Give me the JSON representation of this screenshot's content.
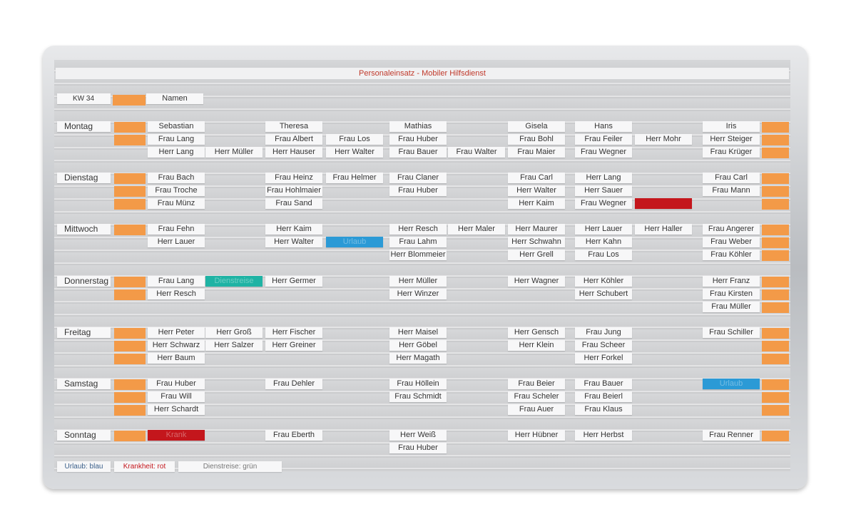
{
  "header": {
    "title": "Personaleinsatz - Mobiler Hilfsdienst",
    "week": "KW 34",
    "names_label": "Namen"
  },
  "days": [
    {
      "name": "Montag",
      "rows": [
        {
          "cells": [
            "Sebastian",
            null,
            "Theresa",
            null,
            "Mathias",
            null,
            "Gisela",
            "Hans",
            null,
            "Iris"
          ],
          "tab_left": true,
          "tab_right": true
        },
        {
          "cells": [
            "Frau Lang",
            null,
            "Frau Albert",
            "Frau Los",
            "Frau Huber",
            null,
            "Frau Bohl",
            "Frau Feiler",
            "Herr Mohr",
            "Herr Steiger"
          ],
          "tab_left": true,
          "tab_right": true
        },
        {
          "cells": [
            "Herr Lang",
            "Herr Müller",
            "Herr Hauser",
            "Herr Walter",
            "Frau Bauer",
            "Frau Walter",
            "Frau Maier",
            "Frau Wegner",
            null,
            "Frau Krüger"
          ],
          "tab_left": false,
          "tab_right": true
        }
      ]
    },
    {
      "name": "Dienstag",
      "rows": [
        {
          "cells": [
            "Frau Bach",
            null,
            "Frau Heinz",
            "Frau Helmer",
            "Frau Claner",
            null,
            "Frau Carl",
            "Herr Lang",
            null,
            "Frau Carl"
          ],
          "tab_left": true,
          "tab_right": true
        },
        {
          "cells": [
            "Frau Troche",
            null,
            "Frau Hohlmaier",
            null,
            "Frau Huber",
            null,
            "Herr Walter",
            "Herr Sauer",
            null,
            "Frau Mann"
          ],
          "tab_left": true,
          "tab_right": true
        },
        {
          "cells": [
            "Frau Münz",
            null,
            "Frau Sand",
            null,
            null,
            null,
            "Herr Kaim",
            "Frau Wegner",
            {
              "color": "#c4161c"
            },
            null
          ],
          "tab_left": true,
          "tab_right": true
        }
      ]
    },
    {
      "name": "Mittwoch",
      "rows": [
        {
          "cells": [
            "Frau Fehn",
            null,
            "Herr Kaim",
            null,
            "Herr Resch",
            "Herr Maler",
            "Herr Maurer",
            "Herr Lauer",
            "Herr Haller",
            "Frau Angerer"
          ],
          "tab_left": true,
          "tab_right": true
        },
        {
          "cells": [
            "Herr Lauer",
            null,
            "Herr Walter",
            {
              "text": "Urlaub",
              "color": "#2b9ad6"
            },
            "Frau Lahm",
            null,
            "Herr Schwahn",
            "Herr Kahn",
            null,
            "Frau Weber"
          ],
          "tab_left": false,
          "tab_right": true
        },
        {
          "cells": [
            null,
            null,
            null,
            null,
            "Herr Blommeier",
            null,
            "Herr Grell",
            "Frau Los",
            null,
            "Frau Köhler"
          ],
          "tab_left": false,
          "tab_right": true
        }
      ]
    },
    {
      "name": "Donnerstag",
      "rows": [
        {
          "cells": [
            "Frau Lang",
            {
              "text": "Dienstreise",
              "color": "#1fb3a4"
            },
            "Herr Germer",
            null,
            "Herr Müller",
            null,
            "Herr Wagner",
            "Herr Köhler",
            null,
            "Herr Franz"
          ],
          "tab_left": true,
          "tab_right": true
        },
        {
          "cells": [
            "Herr Resch",
            null,
            null,
            null,
            "Herr Winzer",
            null,
            null,
            "Herr Schubert",
            null,
            "Frau Kirsten"
          ],
          "tab_left": true,
          "tab_right": true
        },
        {
          "cells": [
            null,
            null,
            null,
            null,
            null,
            null,
            null,
            null,
            null,
            "Frau Müller"
          ],
          "tab_left": false,
          "tab_right": true
        }
      ]
    },
    {
      "name": "Freitag",
      "rows": [
        {
          "cells": [
            "Herr Peter",
            "Herr Groß",
            "Herr Fischer",
            null,
            "Herr Maisel",
            null,
            "Herr Gensch",
            "Frau Jung",
            null,
            "Frau Schiller"
          ],
          "tab_left": true,
          "tab_right": true
        },
        {
          "cells": [
            "Herr Schwarz",
            "Herr Salzer",
            "Herr Greiner",
            null,
            "Herr Göbel",
            null,
            "Herr Klein",
            "Frau Scheer",
            null,
            null
          ],
          "tab_left": true,
          "tab_right": true
        },
        {
          "cells": [
            "Herr Baum",
            null,
            null,
            null,
            "Herr Magath",
            null,
            null,
            "Herr Forkel",
            null,
            null
          ],
          "tab_left": true,
          "tab_right": true
        }
      ]
    },
    {
      "name": "Samstag",
      "rows": [
        {
          "cells": [
            "Frau Huber",
            null,
            "Frau Dehler",
            null,
            "Frau Höllein",
            null,
            "Frau Beier",
            "Frau Bauer",
            null,
            {
              "text": "Urlaub",
              "color": "#2b9ad6"
            }
          ],
          "tab_left": true,
          "tab_right": true
        },
        {
          "cells": [
            "Frau Will",
            null,
            null,
            null,
            "Frau Schmidt",
            null,
            "Frau Scheler",
            "Frau Beierl",
            null,
            null
          ],
          "tab_left": true,
          "tab_right": true
        },
        {
          "cells": [
            "Herr Schardt",
            null,
            null,
            null,
            null,
            null,
            "Frau Auer",
            "Frau Klaus",
            null,
            null
          ],
          "tab_left": true,
          "tab_right": true
        }
      ]
    },
    {
      "name": "Sonntag",
      "rows": [
        {
          "cells": [
            {
              "text": "Krank",
              "color": "#c4161c"
            },
            null,
            "Frau Eberth",
            null,
            "Herr Weiß",
            null,
            "Herr Hübner",
            "Herr Herbst",
            null,
            "Frau Renner"
          ],
          "tab_left": true,
          "tab_right": true
        },
        {
          "cells": [
            null,
            null,
            null,
            null,
            "Frau Huber",
            null,
            null,
            null,
            null,
            null
          ],
          "tab_left": false,
          "tab_right": false
        }
      ]
    }
  ],
  "legend": [
    {
      "text": "Urlaub: blau",
      "color": "#3a5f8a"
    },
    {
      "text": "Krankheit: rot",
      "color": "#c4161c"
    },
    {
      "text": "Dienstreise: grün",
      "color": "#777777"
    }
  ]
}
